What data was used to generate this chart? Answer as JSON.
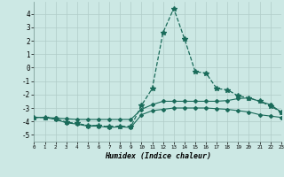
{
  "xlabel": "Humidex (Indice chaleur)",
  "ylabel": "",
  "bg_color": "#cce8e4",
  "grid_color": "#b0ccc8",
  "line_color": "#1a6b5a",
  "xlim": [
    0,
    23
  ],
  "ylim": [
    -5.5,
    4.9
  ],
  "xticks": [
    0,
    1,
    2,
    3,
    4,
    5,
    6,
    7,
    8,
    9,
    10,
    11,
    12,
    13,
    14,
    15,
    16,
    17,
    18,
    19,
    20,
    21,
    22,
    23
  ],
  "yticks": [
    -5,
    -4,
    -3,
    -2,
    -1,
    0,
    1,
    2,
    3,
    4
  ],
  "series": {
    "main": {
      "x": [
        0,
        1,
        2,
        3,
        4,
        5,
        6,
        7,
        8,
        9,
        10,
        11,
        12,
        13,
        14,
        15,
        16,
        17,
        18,
        19,
        20,
        21,
        22,
        23
      ],
      "y": [
        -3.7,
        -3.7,
        -3.8,
        -4.05,
        -4.15,
        -4.3,
        -4.3,
        -4.4,
        -4.35,
        -4.4,
        -2.8,
        -1.55,
        2.6,
        4.4,
        2.15,
        -0.3,
        -0.4,
        -1.55,
        -1.65,
        -2.1,
        -2.25,
        -2.5,
        -2.85,
        -3.3
      ],
      "linestyle": "--",
      "marker": "*",
      "markersize": 4.0,
      "lw": 0.9
    },
    "upper": {
      "x": [
        0,
        1,
        2,
        3,
        4,
        5,
        6,
        7,
        8,
        9,
        10,
        11,
        12,
        13,
        14,
        15,
        16,
        17,
        18,
        19,
        20,
        21,
        22,
        23
      ],
      "y": [
        -3.7,
        -3.7,
        -3.75,
        -3.8,
        -3.85,
        -3.85,
        -3.85,
        -3.85,
        -3.85,
        -3.85,
        -3.1,
        -2.75,
        -2.5,
        -2.5,
        -2.5,
        -2.5,
        -2.5,
        -2.5,
        -2.45,
        -2.3,
        -2.25,
        -2.5,
        -2.75,
        -3.3
      ],
      "linestyle": "-",
      "marker": "D",
      "markersize": 2.0,
      "lw": 0.8
    },
    "lower": {
      "x": [
        0,
        1,
        2,
        3,
        4,
        5,
        6,
        7,
        8,
        9,
        10,
        11,
        12,
        13,
        14,
        15,
        16,
        17,
        18,
        19,
        20,
        21,
        22,
        23
      ],
      "y": [
        -3.7,
        -3.7,
        -3.85,
        -4.1,
        -4.2,
        -4.35,
        -4.35,
        -4.45,
        -4.4,
        -4.45,
        -3.5,
        -3.2,
        -3.1,
        -3.0,
        -3.0,
        -3.0,
        -3.0,
        -3.05,
        -3.1,
        -3.2,
        -3.3,
        -3.5,
        -3.6,
        -3.7
      ],
      "linestyle": "-",
      "marker": "D",
      "markersize": 2.0,
      "lw": 0.8
    }
  }
}
